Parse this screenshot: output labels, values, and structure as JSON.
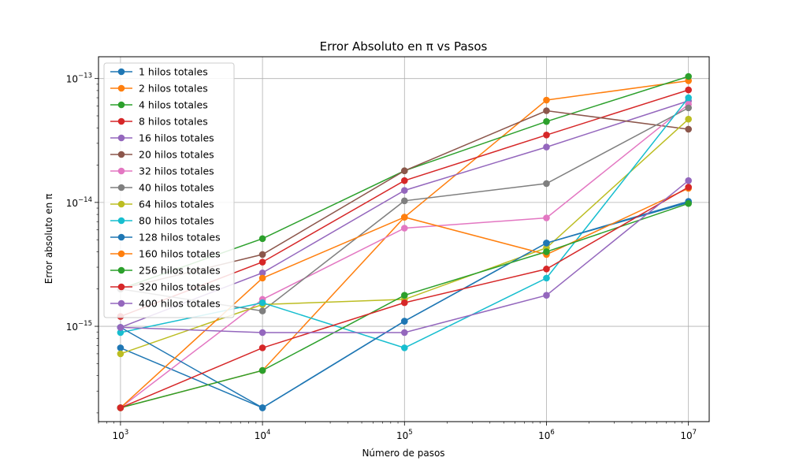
{
  "chart_data": {
    "type": "line",
    "title": "Error Absoluto en π vs Pasos",
    "xlabel": "Número de pasos",
    "ylabel": "Error absoluto en π",
    "x_scale": "log",
    "y_scale": "log",
    "xlim": [
      700,
      14000000
    ],
    "ylim": [
      1.7e-16,
      1.5e-13
    ],
    "grid": true,
    "legend_position": "upper-left",
    "x": [
      1000,
      10000,
      100000,
      1000000,
      10000000
    ],
    "x_ticks": [
      {
        "value": 1000,
        "base": "10",
        "exp": "3"
      },
      {
        "value": 10000,
        "base": "10",
        "exp": "4"
      },
      {
        "value": 100000,
        "base": "10",
        "exp": "5"
      },
      {
        "value": 1000000,
        "base": "10",
        "exp": "6"
      },
      {
        "value": 10000000,
        "base": "10",
        "exp": "7"
      }
    ],
    "y_ticks": [
      {
        "value": 1e-15,
        "base": "10",
        "exp": "−15"
      },
      {
        "value": 1e-14,
        "base": "10",
        "exp": "−14"
      },
      {
        "value": 1e-13,
        "base": "10",
        "exp": "−13"
      }
    ],
    "series": [
      {
        "name": "1 hilos totales",
        "color": "#1f77b4",
        "values": [
          6.7e-16,
          2.2e-16,
          1.1e-15,
          4.7e-15,
          1e-14
        ]
      },
      {
        "name": "2 hilos totales",
        "color": "#ff7f0e",
        "values": [
          2.2e-16,
          4.4e-16,
          7.6e-15,
          6.7e-14,
          9.6e-14
        ]
      },
      {
        "name": "4 hilos totales",
        "color": "#2ca02c",
        "values": [
          2e-15,
          5.1e-15,
          1.8e-14,
          4.5e-14,
          1.04e-13
        ]
      },
      {
        "name": "8 hilos totales",
        "color": "#d62728",
        "values": [
          1.2e-15,
          3.3e-15,
          1.5e-14,
          3.5e-14,
          8.1e-14
        ]
      },
      {
        "name": "16 hilos totales",
        "color": "#9467bd",
        "values": [
          9.8e-16,
          2.7e-15,
          1.25e-14,
          2.8e-14,
          6.6e-14
        ]
      },
      {
        "name": "20 hilos totales",
        "color": "#8c564b",
        "values": [
          2e-15,
          3.8e-15,
          1.8e-14,
          5.5e-14,
          3.9e-14
        ]
      },
      {
        "name": "32 hilos totales",
        "color": "#e377c2",
        "values": [
          2.2e-16,
          1.65e-15,
          6.2e-15,
          7.5e-15,
          6.2e-14
        ]
      },
      {
        "name": "40 hilos totales",
        "color": "#7f7f7f",
        "values": [
          2e-15,
          1.33e-15,
          1.03e-14,
          1.42e-14,
          5.8e-14
        ]
      },
      {
        "name": "64 hilos totales",
        "color": "#bcbd22",
        "values": [
          6e-16,
          1.5e-15,
          1.65e-15,
          4.3e-15,
          4.7e-14
        ]
      },
      {
        "name": "80 hilos totales",
        "color": "#17becf",
        "values": [
          8.9e-16,
          1.55e-15,
          6.7e-16,
          2.45e-15,
          7e-14
        ]
      },
      {
        "name": "128 hilos totales",
        "color": "#1f77b4",
        "values": [
          9.8e-16,
          2.2e-16,
          1.1e-15,
          4.7e-15,
          1.02e-14
        ]
      },
      {
        "name": "160 hilos totales",
        "color": "#ff7f0e",
        "values": [
          2.2e-16,
          2.45e-15,
          7.6e-15,
          3.8e-15,
          1.3e-14
        ]
      },
      {
        "name": "256 hilos totales",
        "color": "#2ca02c",
        "values": [
          2.2e-16,
          4.4e-16,
          1.78e-15,
          4e-15,
          9.8e-15
        ]
      },
      {
        "name": "320 hilos totales",
        "color": "#d62728",
        "values": [
          2.2e-16,
          6.7e-16,
          1.55e-15,
          2.9e-15,
          1.33e-14
        ]
      },
      {
        "name": "400 hilos totales",
        "color": "#9467bd",
        "values": [
          9.8e-16,
          8.9e-16,
          8.9e-16,
          1.78e-15,
          1.5e-14
        ]
      }
    ]
  }
}
